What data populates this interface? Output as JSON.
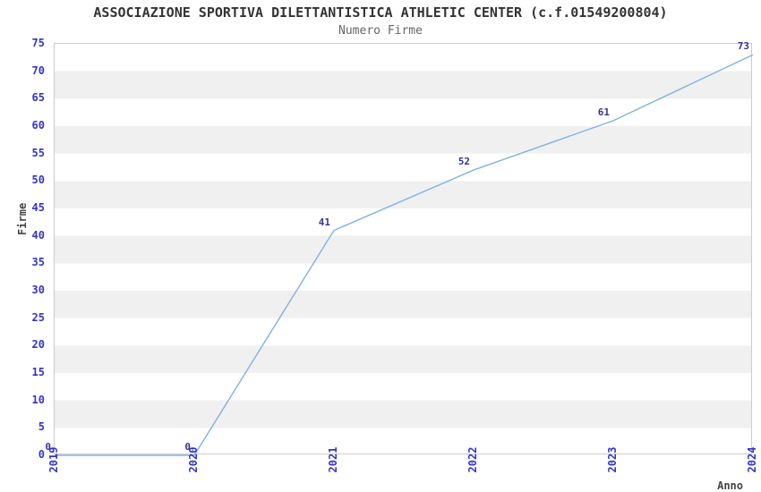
{
  "chart_data": {
    "type": "line",
    "title": "ASSOCIAZIONE SPORTIVA DILETTANTISTICA ATHLETIC CENTER (c.f.01549200804)",
    "subtitle": "Numero Firme",
    "xlabel": "Anno",
    "ylabel": "Firme",
    "categories": [
      "2019",
      "2020",
      "2021",
      "2022",
      "2023",
      "2024"
    ],
    "values": [
      0,
      0,
      41,
      52,
      61,
      73
    ],
    "point_labels": [
      "0",
      "0",
      "41",
      "52",
      "61",
      "73"
    ],
    "ylim": [
      0,
      75
    ],
    "ytick_step": 5,
    "grid": "alternating-horizontal-bands",
    "legend": "none",
    "colors": {
      "background": "#ffffff",
      "line": "#7fb2e5",
      "tick_label": "#3333cc",
      "point_label": "#333399",
      "band": "#f0f0f0",
      "band_edge": "#e2e2e2",
      "plot_border": "#cccccc",
      "title": "#333333",
      "subtitle": "#666666",
      "axis_title": "#444444"
    }
  }
}
